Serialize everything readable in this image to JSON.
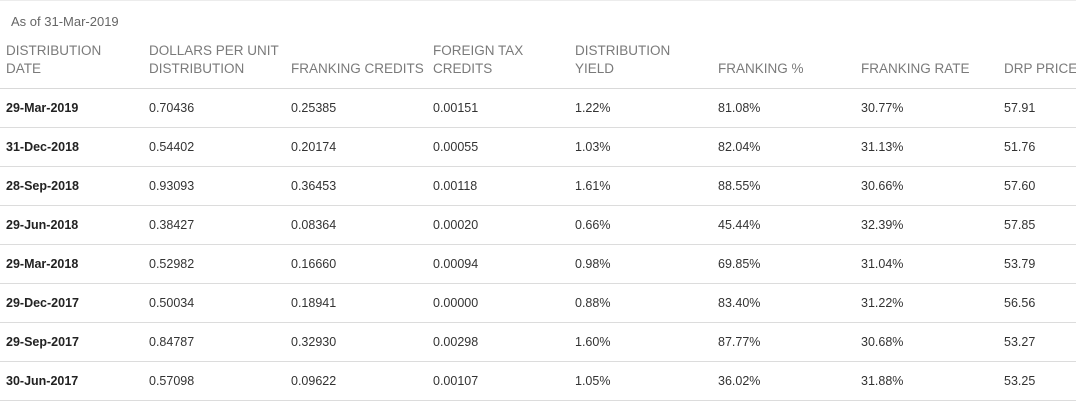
{
  "as_of": "As of 31-Mar-2019",
  "headers": [
    [
      "DISTRIBUTION",
      "DATE"
    ],
    [
      "DOLLARS PER UNIT",
      "DISTRIBUTION"
    ],
    [
      "",
      "FRANKING CREDITS"
    ],
    [
      "FOREIGN TAX",
      "CREDITS"
    ],
    [
      "DISTRIBUTION",
      "YIELD"
    ],
    [
      "",
      "FRANKING %"
    ],
    [
      "",
      "FRANKING RATE"
    ],
    [
      "",
      "DRP PRICE"
    ]
  ],
  "rows": [
    [
      "29-Mar-2019",
      "0.70436",
      "0.25385",
      "0.00151",
      "1.22%",
      "81.08%",
      "30.77%",
      "57.91"
    ],
    [
      "31-Dec-2018",
      "0.54402",
      "0.20174",
      "0.00055",
      "1.03%",
      "82.04%",
      "31.13%",
      "51.76"
    ],
    [
      "28-Sep-2018",
      "0.93093",
      "0.36453",
      "0.00118",
      "1.61%",
      "88.55%",
      "30.66%",
      "57.60"
    ],
    [
      "29-Jun-2018",
      "0.38427",
      "0.08364",
      "0.00020",
      "0.66%",
      "45.44%",
      "32.39%",
      "57.85"
    ],
    [
      "29-Mar-2018",
      "0.52982",
      "0.16660",
      "0.00094",
      "0.98%",
      "69.85%",
      "31.04%",
      "53.79"
    ],
    [
      "29-Dec-2017",
      "0.50034",
      "0.18941",
      "0.00000",
      "0.88%",
      "83.40%",
      "31.22%",
      "56.56"
    ],
    [
      "29-Sep-2017",
      "0.84787",
      "0.32930",
      "0.00298",
      "1.60%",
      "87.77%",
      "30.68%",
      "53.27"
    ],
    [
      "30-Jun-2017",
      "0.57098",
      "0.09622",
      "0.00107",
      "1.05%",
      "36.02%",
      "31.88%",
      "53.25"
    ]
  ]
}
